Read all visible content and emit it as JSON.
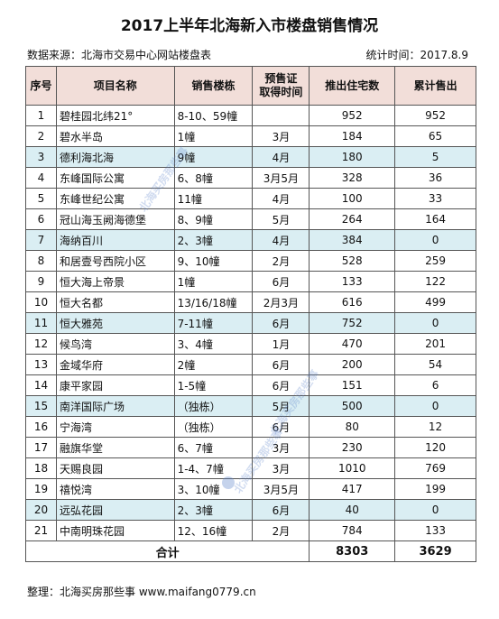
{
  "title": "2017上半年北海新入市楼盘销售情况",
  "source": "数据来源：北海市交易中心网站楼盘表",
  "stat_time": "统计时间：2017.8.9",
  "headers": [
    "序号",
    "项目名称",
    "销售楼栋",
    "预售证\n取得时间",
    "推出住宅数",
    "累计售出"
  ],
  "rows": [
    {
      "no": "1",
      "name": "碧桂园北纬21°",
      "building": "8-10、59幢",
      "permit": "",
      "units": "952",
      "sold": "952",
      "hl": false
    },
    {
      "no": "2",
      "name": "碧水半岛",
      "building": "1幢",
      "permit": "3月",
      "units": "184",
      "sold": "65",
      "hl": false
    },
    {
      "no": "3",
      "name": "德利海北海",
      "building": "9幢",
      "permit": "4月",
      "units": "180",
      "sold": "5",
      "hl": true
    },
    {
      "no": "4",
      "name": "东峰国际公寓",
      "building": "6、8幢",
      "permit": "3月5月",
      "units": "328",
      "sold": "36",
      "hl": false
    },
    {
      "no": "5",
      "name": "东峰世纪公寓",
      "building": "11幢",
      "permit": "4月",
      "units": "100",
      "sold": "33",
      "hl": false
    },
    {
      "no": "6",
      "name": "冠山海玉阙海德堡",
      "building": "8、9幢",
      "permit": "5月",
      "units": "264",
      "sold": "164",
      "hl": false
    },
    {
      "no": "7",
      "name": "海纳百川",
      "building": "2、3幢",
      "permit": "4月",
      "units": "384",
      "sold": "0",
      "hl": true
    },
    {
      "no": "8",
      "name": "和居壹号西院小区",
      "building": "9、10幢",
      "permit": "2月",
      "units": "528",
      "sold": "259",
      "hl": false
    },
    {
      "no": "9",
      "name": "恒大海上帝景",
      "building": "1幢",
      "permit": "6月",
      "units": "133",
      "sold": "122",
      "hl": false
    },
    {
      "no": "10",
      "name": "恒大名都",
      "building": "13/16/18幢",
      "permit": "2月3月",
      "units": "616",
      "sold": "499",
      "hl": false
    },
    {
      "no": "11",
      "name": "恒大雅苑",
      "building": "7-11幢",
      "permit": "6月",
      "units": "752",
      "sold": "0",
      "hl": true
    },
    {
      "no": "12",
      "name": "候鸟湾",
      "building": "3、4幢",
      "permit": "1月",
      "units": "470",
      "sold": "201",
      "hl": false
    },
    {
      "no": "13",
      "name": "金域华府",
      "building": "2幢",
      "permit": "6月",
      "units": "200",
      "sold": "54",
      "hl": false
    },
    {
      "no": "14",
      "name": "康平家园",
      "building": "1-5幢",
      "permit": "6月",
      "units": "151",
      "sold": "6",
      "hl": false
    },
    {
      "no": "15",
      "name": "南洋国际广场",
      "building": "（独栋）",
      "permit": "5月",
      "units": "500",
      "sold": "0",
      "hl": true
    },
    {
      "no": "16",
      "name": "宁海湾",
      "building": "（独栋）",
      "permit": "6月",
      "units": "80",
      "sold": "12",
      "hl": false
    },
    {
      "no": "17",
      "name": "融旗华堂",
      "building": "6、7幢",
      "permit": "3月",
      "units": "230",
      "sold": "120",
      "hl": false
    },
    {
      "no": "18",
      "name": "天赐良园",
      "building": "1-4、7幢",
      "permit": "3月",
      "units": "1010",
      "sold": "769",
      "hl": false
    },
    {
      "no": "19",
      "name": "禧悦湾",
      "building": "3、10幢",
      "permit": "3月5月",
      "units": "417",
      "sold": "199",
      "hl": false
    },
    {
      "no": "20",
      "name": "远弘花园",
      "building": "2、3幢",
      "permit": "6月",
      "units": "40",
      "sold": "0",
      "hl": true
    },
    {
      "no": "21",
      "name": "中南明珠花园",
      "building": "12、16幢",
      "permit": "2月",
      "units": "784",
      "sold": "133",
      "hl": false
    }
  ],
  "total": {
    "label": "合计",
    "units": "8303",
    "sold": "3629"
  },
  "footer": "整理：北海买房那些事 www.maifang0779.cn",
  "watermark": "北海买房那些事",
  "colors": {
    "header_bg": "#f2ded9",
    "highlight_bg": "#daeef3",
    "border": "#555555"
  }
}
